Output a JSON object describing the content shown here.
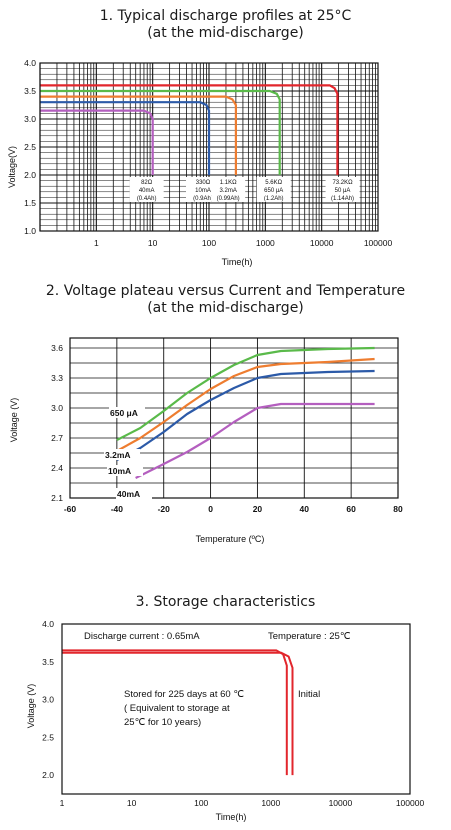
{
  "chart_data": [
    {
      "type": "line",
      "title": "1. Typical discharge profiles at 25°C",
      "subtitle": "(at  the mid-discharge)",
      "xlabel": "Time(h)",
      "ylabel": "Voltage(V)",
      "xscale": "log",
      "xlim": [
        0.1,
        100000
      ],
      "ylim": [
        1.0,
        4.0
      ],
      "grid": true,
      "x_ticks": [
        "1",
        "10",
        "100",
        "1000",
        "10000",
        "100000"
      ],
      "y_ticks": [
        "1.0",
        "1.5",
        "2.0",
        "2.5",
        "3.0",
        "3.5",
        "4.0"
      ],
      "colors": {
        "purple": "#b45fbf",
        "blue": "#2c5aa8",
        "orange": "#ee7d30",
        "green": "#5aba4a",
        "red": "#e2262c"
      },
      "series": [
        {
          "color": "purple",
          "x": [
            0.1,
            7,
            9,
            10,
            10
          ],
          "y": [
            3.15,
            3.15,
            3.1,
            3.0,
            2.0
          ]
        },
        {
          "color": "blue",
          "x": [
            0.1,
            70,
            90,
            100,
            100
          ],
          "y": [
            3.3,
            3.3,
            3.25,
            3.15,
            2.0
          ]
        },
        {
          "color": "orange",
          "x": [
            0.1,
            200,
            260,
            300,
            300
          ],
          "y": [
            3.4,
            3.4,
            3.35,
            3.25,
            2.0
          ]
        },
        {
          "color": "green",
          "x": [
            0.1,
            1200,
            1600,
            1800,
            1800
          ],
          "y": [
            3.5,
            3.5,
            3.45,
            3.35,
            2.0
          ]
        },
        {
          "color": "red",
          "x": [
            0.1,
            14000,
            17000,
            19000,
            19000
          ],
          "y": [
            3.6,
            3.6,
            3.55,
            3.45,
            2.0
          ]
        }
      ],
      "annotations": [
        {
          "x": 10,
          "lines": [
            "82Ω",
            "40mA",
            "(0.4Ah)"
          ]
        },
        {
          "x": 100,
          "lines": [
            "330Ω",
            "10mA",
            "(0.9Ah)"
          ]
        },
        {
          "x": 280,
          "lines": [
            "1.1KΩ",
            "3.2mA",
            "(0.99Ah)"
          ]
        },
        {
          "x": 1800,
          "lines": [
            "5.6KΩ",
            "650 μA",
            "(1.2Ah)"
          ]
        },
        {
          "x": 30000,
          "lines": [
            "73.2KΩ",
            "50 μA",
            "(1.14Ah)"
          ]
        }
      ]
    },
    {
      "type": "line",
      "title": "2. Voltage plateau versus Current and Temperature",
      "subtitle": "(at the mid-discharge)",
      "xlabel": "Temperature (ºC)",
      "ylabel": "Voltage (V)",
      "xlim": [
        -60,
        80
      ],
      "ylim": [
        2.1,
        3.7
      ],
      "grid": true,
      "x_ticks": [
        "-60",
        "-40",
        "-20",
        "0",
        "20",
        "40",
        "60",
        "80"
      ],
      "y_ticks": [
        "2.1",
        "2.4",
        "2.7",
        "3.0",
        "3.3",
        "3.6"
      ],
      "colors": {
        "green": "#5aba4a",
        "orange": "#ee7d30",
        "blue": "#2c5aa8",
        "purple": "#b45fbf"
      },
      "series": [
        {
          "name": "650 μA",
          "color": "green",
          "x": [
            -40,
            -30,
            -20,
            -10,
            0,
            10,
            20,
            30,
            50,
            70
          ],
          "y": [
            2.68,
            2.8,
            2.97,
            3.15,
            3.3,
            3.43,
            3.53,
            3.57,
            3.59,
            3.6
          ]
        },
        {
          "name": "3.2mA",
          "color": "orange",
          "x": [
            -40,
            -30,
            -20,
            -10,
            0,
            10,
            20,
            30,
            50,
            70
          ],
          "y": [
            2.57,
            2.7,
            2.86,
            3.03,
            3.19,
            3.32,
            3.41,
            3.44,
            3.46,
            3.49
          ]
        },
        {
          "name": "10mA",
          "color": "blue",
          "x": [
            -40,
            -30,
            -20,
            -10,
            0,
            10,
            20,
            30,
            50,
            70
          ],
          "y": [
            2.48,
            2.6,
            2.76,
            2.94,
            3.08,
            3.2,
            3.3,
            3.34,
            3.36,
            3.37
          ]
        },
        {
          "name": "40mA",
          "color": "purple",
          "x": [
            -32,
            -20,
            -10,
            0,
            10,
            20,
            30,
            50,
            70
          ],
          "y": [
            2.3,
            2.44,
            2.56,
            2.7,
            2.86,
            3.0,
            3.04,
            3.04,
            3.04
          ]
        }
      ]
    },
    {
      "type": "line",
      "title": "3. Storage characteristics",
      "xlabel": "Time(h)",
      "ylabel": "Voltage (V)",
      "xscale": "log",
      "xlim": [
        1,
        100000
      ],
      "ylim": [
        1.75,
        4.0
      ],
      "grid": false,
      "x_ticks": [
        "1",
        "10",
        "100",
        "1000",
        "10000",
        "100000"
      ],
      "y_ticks": [
        "2.0",
        "2.5",
        "3.0",
        "3.5",
        "4.0"
      ],
      "colors": {
        "line": "#e2262c"
      },
      "notes": {
        "current": "Discharge current : 0.65mA",
        "temperature": "Temperature : 25℃",
        "stored": [
          "Stored for 225 days at 60 ℃",
          "( Equivalent to storage at",
          "25℃ for 10 years)"
        ],
        "initial": "Initial"
      },
      "series": [
        {
          "color": "line",
          "x": [
            1,
            1200,
            1500,
            1700,
            1700
          ],
          "y": [
            3.65,
            3.65,
            3.6,
            3.45,
            2.0
          ]
        },
        {
          "color": "line",
          "x": [
            1,
            1400,
            1800,
            2050,
            2050
          ],
          "y": [
            3.62,
            3.62,
            3.57,
            3.42,
            2.0
          ]
        }
      ]
    }
  ]
}
